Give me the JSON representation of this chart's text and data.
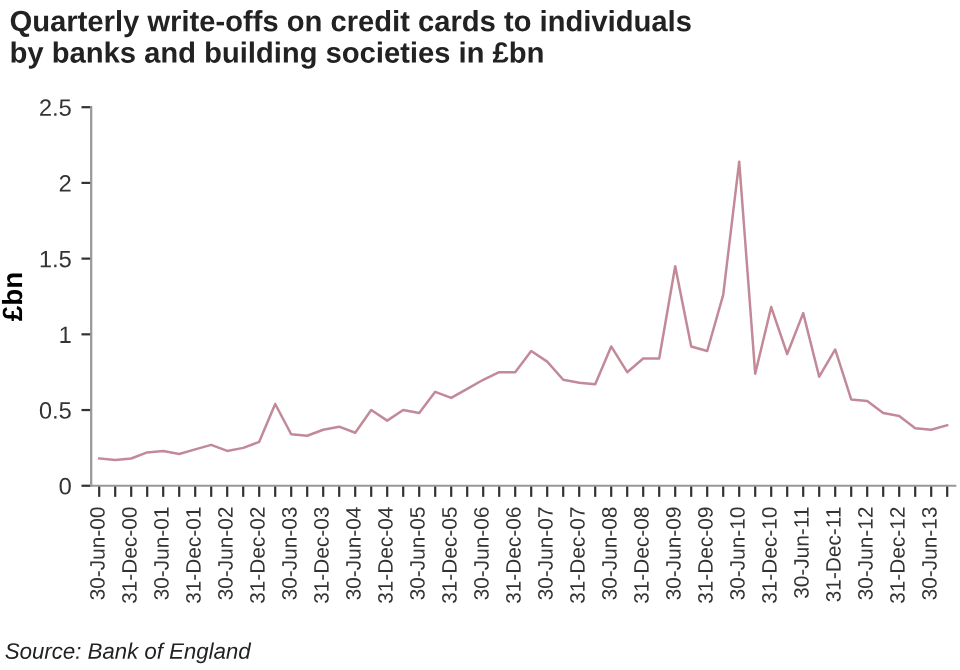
{
  "chart_data": {
    "type": "line",
    "title": "Quarterly write-offs on credit cards to individuals\nby banks and building societies in £bn",
    "ylabel": "£bn",
    "categories": [
      "30-Jun-00",
      null,
      "31-Dec-00",
      null,
      "30-Jun-01",
      null,
      "31-Dec-01",
      null,
      "30-Jun-02",
      null,
      "31-Dec-02",
      null,
      "30-Jun-03",
      null,
      "31-Dec-03",
      null,
      "30-Jun-04",
      null,
      "31-Dec-04",
      null,
      "30-Jun-05",
      null,
      "31-Dec-05",
      null,
      "30-Jun-06",
      null,
      "31-Dec-06",
      null,
      "30-Jun-07",
      null,
      "31-Dec-07",
      null,
      "30-Jun-08",
      null,
      "31-Dec-08",
      null,
      "30-Jun-09",
      null,
      "31-Dec-09",
      null,
      "30-Jun-10",
      null,
      "31-Dec-10",
      null,
      "30-Jun-11",
      null,
      "31-Dec-11",
      null,
      "30-Jun-12",
      null,
      "31-Dec-12",
      null,
      "30-Jun-13",
      null
    ],
    "series": [
      {
        "color": "#c28a98",
        "values": [
          0.18,
          0.17,
          0.18,
          0.22,
          0.23,
          0.21,
          0.24,
          0.27,
          0.23,
          0.25,
          0.29,
          0.54,
          0.34,
          0.33,
          0.37,
          0.39,
          0.35,
          0.5,
          0.43,
          0.5,
          0.48,
          0.62,
          0.58,
          0.64,
          0.7,
          0.75,
          0.75,
          0.89,
          0.82,
          0.7,
          0.68,
          0.67,
          0.92,
          0.75,
          0.84,
          0.84,
          1.45,
          0.92,
          0.89,
          1.26,
          2.14,
          0.74,
          1.18,
          0.87,
          1.14,
          0.72,
          0.9,
          0.57,
          0.56,
          0.48,
          0.46,
          0.38,
          0.37,
          0.4
        ]
      }
    ],
    "ylim": [
      0,
      2.5
    ],
    "yticks": [
      0,
      0.5,
      1,
      1.5,
      2,
      2.5
    ],
    "grid": false,
    "marker": "none",
    "line_style": "solid",
    "annotations": [
      "Source: Bank of England"
    ]
  }
}
